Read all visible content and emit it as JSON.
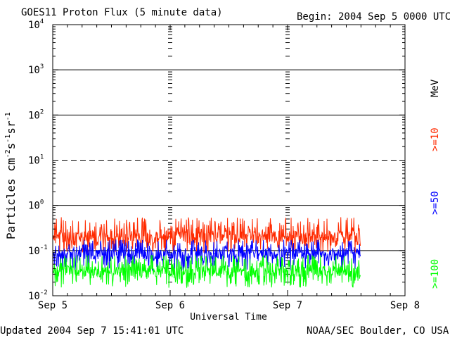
{
  "header": {
    "title": "GOES11 Proton Flux (5 minute data)",
    "begin": "Begin: 2004 Sep 5 0000 UTC"
  },
  "footer": {
    "updated": "Updated 2004 Sep  7 15:41:01 UTC",
    "credit": "NOAA/SEC Boulder, CO USA"
  },
  "chart_data": {
    "type": "line",
    "title": "GOES11 Proton Flux (5 minute data)",
    "xlabel": "Universal Time",
    "ylabel_base": "Particles cm",
    "ylabel_exp1": "-2",
    "ylabel_s": "s",
    "ylabel_exp2": "-1",
    "ylabel_sr": "sr",
    "ylabel_exp3": "-1",
    "yscale": "log",
    "ylim": [
      0.01,
      10000
    ],
    "xlim_days": [
      0,
      3
    ],
    "x_ticks": [
      "Sep 5",
      "Sep 6",
      "Sep 7",
      "Sep 8"
    ],
    "y_ticks": [
      {
        "base": "10",
        "exp": "-2",
        "value": 0.01
      },
      {
        "base": "10",
        "exp": "-1",
        "value": 0.1
      },
      {
        "base": "10",
        "exp": "0",
        "value": 1
      },
      {
        "base": "10",
        "exp": "1",
        "value": 10
      },
      {
        "base": "10",
        "exp": "2",
        "value": 100
      },
      {
        "base": "10",
        "exp": "3",
        "value": 1000
      },
      {
        "base": "10",
        "exp": "4",
        "value": 10000
      }
    ],
    "horizontal_lines": [
      {
        "value": 0.1,
        "style": "solid"
      },
      {
        "value": 1,
        "style": "solid"
      },
      {
        "value": 10,
        "style": "dashed"
      },
      {
        "value": 100,
        "style": "solid"
      },
      {
        "value": 1000,
        "style": "solid"
      }
    ],
    "units_label": "MeV",
    "data_end_day": 2.62,
    "series": [
      {
        "name": ">=10",
        "color": "#ff2a00",
        "approx_median": 0.2,
        "approx_min": 0.09,
        "approx_max": 0.55
      },
      {
        "name": ">=50",
        "color": "#0000ff",
        "approx_median": 0.085,
        "approx_min": 0.035,
        "approx_max": 0.18
      },
      {
        "name": ">=100",
        "color": "#00ff00",
        "approx_median": 0.035,
        "approx_min": 0.015,
        "approx_max": 0.08
      }
    ]
  }
}
